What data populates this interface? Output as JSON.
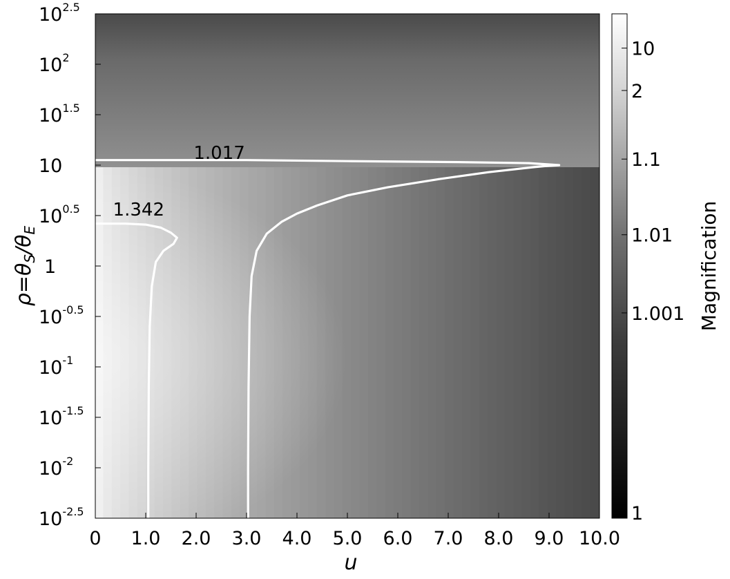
{
  "chart_data": {
    "type": "heatmap",
    "xlabel": "u",
    "ylabel": "ρ=θS/θE",
    "ylabel_parts": {
      "rho": "ρ=θ",
      "sub1": "S",
      "slash": "/θ",
      "sub2": "E"
    },
    "xlim": [
      0,
      10
    ],
    "ylim_log10": [
      -2.5,
      2.5
    ],
    "x_ticks": [
      {
        "value": 0,
        "label": "0"
      },
      {
        "value": 1,
        "label": "1.0"
      },
      {
        "value": 2,
        "label": "2.0"
      },
      {
        "value": 3,
        "label": "3.0"
      },
      {
        "value": 4,
        "label": "4.0"
      },
      {
        "value": 5,
        "label": "5.0"
      },
      {
        "value": 6,
        "label": "6.0"
      },
      {
        "value": 7,
        "label": "7.0"
      },
      {
        "value": 8,
        "label": "8.0"
      },
      {
        "value": 9,
        "label": "9.0"
      },
      {
        "value": 10,
        "label": "10.0"
      }
    ],
    "y_ticks": [
      {
        "log": -2.5,
        "base": "10",
        "exp": "-2.5"
      },
      {
        "log": -2.0,
        "base": "10",
        "exp": "-2"
      },
      {
        "log": -1.5,
        "base": "10",
        "exp": "-1.5"
      },
      {
        "log": -1.0,
        "base": "10",
        "exp": "-1"
      },
      {
        "log": -0.5,
        "base": "10",
        "exp": "-0.5"
      },
      {
        "log": 0.0,
        "base": "1",
        "exp": ""
      },
      {
        "log": 0.5,
        "base": "10",
        "exp": "0.5"
      },
      {
        "log": 1.0,
        "base": "10",
        "exp": ""
      },
      {
        "log": 1.5,
        "base": "10",
        "exp": "1.5"
      },
      {
        "log": 2.0,
        "base": "10",
        "exp": "2"
      },
      {
        "log": 2.5,
        "base": "10",
        "exp": "2.5"
      }
    ],
    "colorbar": {
      "title": "Magnification",
      "scale": "log",
      "min": 1,
      "max": 30,
      "ticks": [
        {
          "value": 1,
          "label": "1"
        },
        {
          "value": 1.001,
          "label": "1.001"
        },
        {
          "value": 1.01,
          "label": "1.01"
        },
        {
          "value": 1.1,
          "label": "1.1"
        },
        {
          "value": 2,
          "label": "2"
        },
        {
          "value": 10,
          "label": "10"
        }
      ],
      "colormap": "grayscale"
    },
    "contours": [
      {
        "level_label": "1.342",
        "label_at": {
          "u": 0.35,
          "log_rho": 0.5
        },
        "points": [
          [
            0,
            0.42
          ],
          [
            0.6,
            0.42
          ],
          [
            1.0,
            0.41
          ],
          [
            1.3,
            0.38
          ],
          [
            1.5,
            0.33
          ],
          [
            1.62,
            0.28
          ],
          [
            1.55,
            0.22
          ],
          [
            1.35,
            0.15
          ],
          [
            1.2,
            0.04
          ],
          [
            1.12,
            -0.2
          ],
          [
            1.08,
            -0.6
          ],
          [
            1.06,
            -1.2
          ],
          [
            1.05,
            -2.0
          ],
          [
            1.05,
            -2.5
          ]
        ]
      },
      {
        "level_label": "1.017",
        "label_at": {
          "u": 1.95,
          "log_rho": 1.06
        },
        "points": [
          [
            0,
            1.05
          ],
          [
            3,
            1.05
          ],
          [
            5,
            1.04
          ],
          [
            7.2,
            1.03
          ],
          [
            8.6,
            1.02
          ],
          [
            9.2,
            1.0
          ],
          [
            8.9,
            0.99
          ],
          [
            8.7,
            0.98
          ],
          [
            7.8,
            0.93
          ],
          [
            6.8,
            0.86
          ],
          [
            5.8,
            0.78
          ],
          [
            5.0,
            0.7
          ],
          [
            4.4,
            0.6
          ],
          [
            4.0,
            0.52
          ],
          [
            3.7,
            0.44
          ],
          [
            3.4,
            0.32
          ],
          [
            3.2,
            0.15
          ],
          [
            3.1,
            -0.1
          ],
          [
            3.06,
            -0.5
          ],
          [
            3.04,
            -1.2
          ],
          [
            3.03,
            -2.0
          ],
          [
            3.03,
            -2.5
          ]
        ]
      }
    ]
  }
}
